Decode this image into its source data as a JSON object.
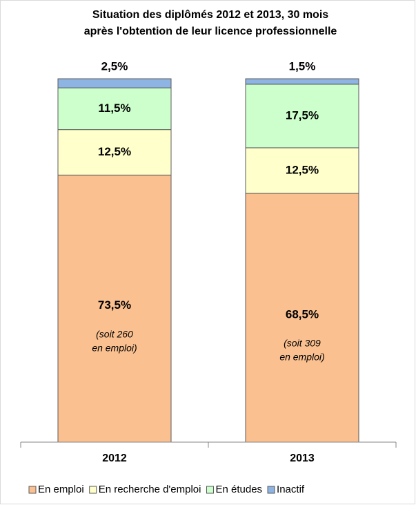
{
  "chart_data": {
    "type": "stacked_bar",
    "title": [
      "Situation des diplômés  2012 et 2013, 30 mois",
      "après l'obtention de leur licence professionnelle"
    ],
    "categories": [
      "2012",
      "2013"
    ],
    "series": [
      {
        "name": "En emploi",
        "color": "#fac090",
        "values": [
          73.5,
          68.5
        ],
        "value_labels": [
          "73,5%",
          "68,5%"
        ]
      },
      {
        "name": "En recherche d'emploi",
        "color": "#ffffcc",
        "values": [
          12.5,
          12.5
        ],
        "value_labels": [
          "12,5%",
          "12,5%"
        ]
      },
      {
        "name": "En études",
        "color": "#ccffcc",
        "values": [
          11.5,
          17.5
        ],
        "value_labels": [
          "11,5%",
          "17,5%"
        ]
      },
      {
        "name": "Inactif",
        "color": "#8db4e2",
        "values": [
          2.5,
          1.5
        ],
        "value_labels": [
          "2,5%",
          "1,5%"
        ]
      }
    ],
    "annotations": [
      [
        "(soit 260",
        "en emploi)"
      ],
      [
        "(soit 309",
        "en emploi)"
      ]
    ],
    "legend": "bottom"
  }
}
